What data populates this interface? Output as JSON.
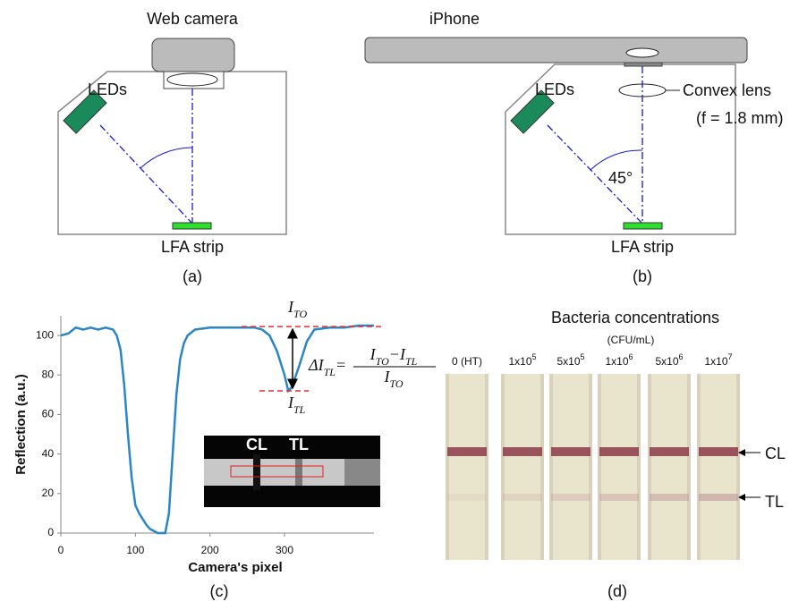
{
  "panel_a": {
    "camera": "Web camera",
    "leds": "LEDs",
    "strip": "LFA strip",
    "label": "(a)"
  },
  "panel_b": {
    "phone": "iPhone",
    "leds": "LEDs",
    "lens": "Convex lens",
    "focal": "(f = 1.8 mm)",
    "angle": "45°",
    "strip": "LFA strip",
    "label": "(b)"
  },
  "chart_data": {
    "type": "line",
    "xlabel": "Camera's pixel",
    "ylabel": "Reflection (a.u.)",
    "xlim": [
      0,
      420
    ],
    "xticks": [
      0,
      100,
      200,
      300
    ],
    "ylim": [
      0,
      110
    ],
    "yticks": [
      0,
      20,
      40,
      60,
      80,
      100
    ],
    "color": "#2a86c4",
    "x": [
      0,
      10,
      20,
      30,
      40,
      50,
      60,
      70,
      75,
      80,
      85,
      90,
      95,
      100,
      105,
      110,
      115,
      120,
      125,
      130,
      135,
      140,
      145,
      150,
      155,
      160,
      165,
      170,
      180,
      200,
      220,
      240,
      260,
      270,
      280,
      290,
      300,
      305,
      310,
      320,
      330,
      340,
      360,
      380,
      400,
      420
    ],
    "values": [
      100,
      101,
      104,
      103,
      104,
      103,
      104,
      103,
      100,
      93,
      75,
      50,
      28,
      14,
      10,
      7,
      4,
      2,
      1,
      0,
      0,
      0,
      10,
      40,
      70,
      88,
      96,
      100,
      103,
      104,
      104,
      104,
      104,
      103,
      100,
      92,
      80,
      72,
      74,
      85,
      97,
      103,
      104,
      104,
      105,
      105
    ],
    "reference_lines": [
      {
        "value": 104.5,
        "color": "#e03030"
      },
      {
        "value": 72,
        "color": "#e03030"
      }
    ],
    "annotations": {
      "ito": {
        "symbol": "I",
        "sub": "TO"
      },
      "itl": {
        "symbol": "I",
        "sub": "TL"
      },
      "formula": {
        "lhs": "ΔI",
        "lhs_sub": "TL",
        "eq": "=",
        "n1": "I",
        "n1_sub": "TO",
        "minus": "−",
        "n2": "I",
        "n2_sub": "TL",
        "d": "I",
        "d_sub": "TO"
      }
    },
    "inset": {
      "cl": "CL",
      "tl": "TL"
    },
    "label": "(c)"
  },
  "panel_d": {
    "title": "Bacteria concentrations",
    "unit": "(CFU/mL)",
    "samples": [
      {
        "base": "0 (HT)"
      },
      {
        "base": "1x10",
        "exp": "5"
      },
      {
        "base": "5x10",
        "exp": "5"
      },
      {
        "base": "1x10",
        "exp": "6"
      },
      {
        "base": "5x10",
        "exp": "6"
      },
      {
        "base": "1x10",
        "exp": "7"
      }
    ],
    "cl": "CL",
    "tl": "TL",
    "label": "(d)"
  }
}
